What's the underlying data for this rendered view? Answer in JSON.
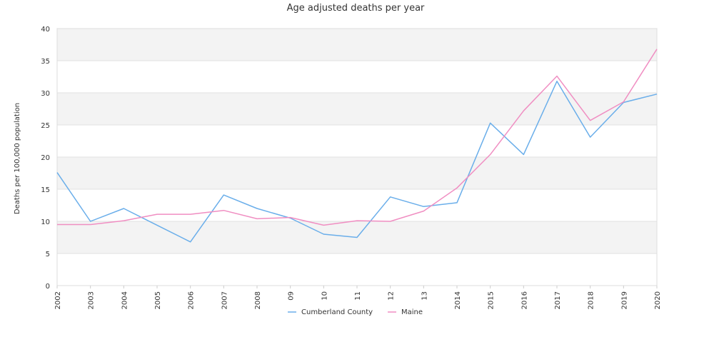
{
  "chart_data": {
    "type": "line",
    "title": "Age adjusted deaths per year",
    "xlabel": "",
    "ylabel": "Deaths per 100,000 population",
    "categories": [
      "2002",
      "2003",
      "2004",
      "2005",
      "2006",
      "2007",
      "2008",
      "09",
      "10",
      "11",
      "12",
      "13",
      "2014",
      "2015",
      "2016",
      "2017",
      "2018",
      "2019",
      "2020"
    ],
    "ylim": [
      0,
      40
    ],
    "yticks": [
      0,
      5,
      10,
      15,
      20,
      25,
      30,
      35,
      40
    ],
    "grid": true,
    "legend_position": "bottom",
    "series": [
      {
        "name": "Cumberland County",
        "color": "#6aaeea",
        "values": [
          17.6,
          10.0,
          12.0,
          9.4,
          6.8,
          14.1,
          12.0,
          10.5,
          8.0,
          7.5,
          13.8,
          12.3,
          12.9,
          25.3,
          20.4,
          31.8,
          23.1,
          28.5,
          29.8
        ]
      },
      {
        "name": "Maine",
        "color": "#f08ec2",
        "values": [
          9.5,
          9.5,
          10.1,
          11.1,
          11.1,
          11.7,
          10.4,
          10.6,
          9.4,
          10.1,
          10.0,
          11.6,
          15.2,
          20.4,
          27.2,
          32.6,
          25.7,
          28.6,
          36.8
        ]
      }
    ]
  }
}
